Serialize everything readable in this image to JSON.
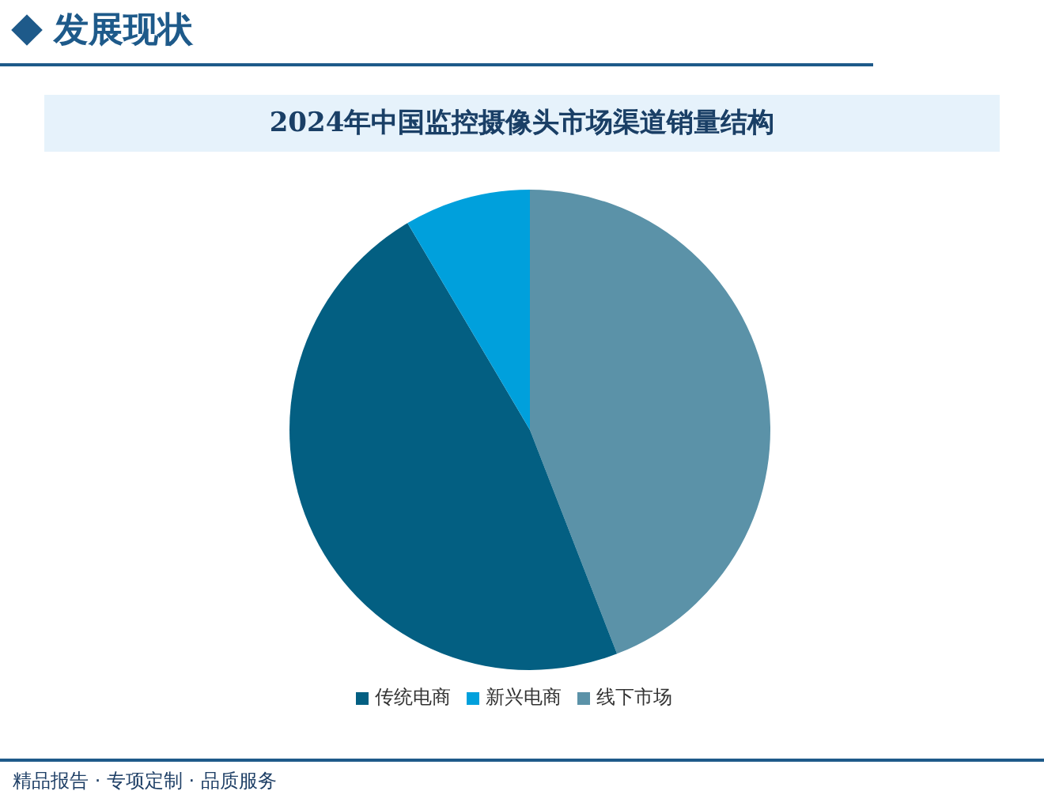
{
  "chart_data": {
    "type": "pie",
    "title": "2024年中国监控摄像头市场渠道销量结构",
    "categories": [
      "线下市场",
      "传统电商",
      "新兴电商"
    ],
    "values": [
      44.1,
      47.4,
      8.5
    ],
    "colors": [
      "#5b92a8",
      "#035f82",
      "#00a0dc"
    ],
    "legend": "bottom",
    "annotations": [
      "发展现状",
      "精品报告 · 专项定制 · 品质服务"
    ]
  }
}
